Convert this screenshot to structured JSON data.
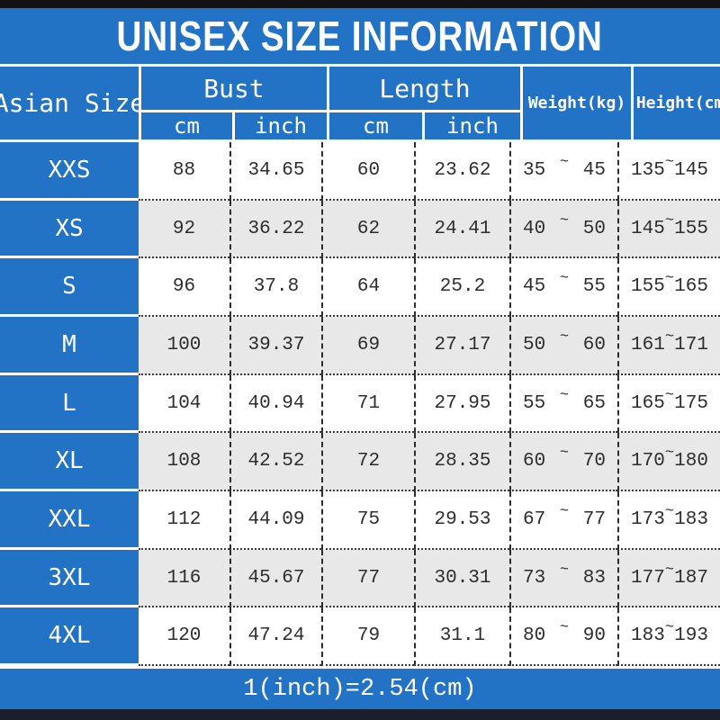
{
  "title": "UNISEX SIZE INFORMATION",
  "footer_note": "1(inch)=2.54(cm)",
  "symbols": {
    "tilde": "~"
  },
  "colors": {
    "background_blue": "#2273c5",
    "row_alt_gray": "#e8e8e8",
    "row_white": "#ffffff",
    "top_bar_black": "#121212",
    "bottom_bar_dark": "#1b1f2b",
    "text_dark": "#2d2d2d",
    "text_white": "#ffffff"
  },
  "header": {
    "asian_size": "Asian Size",
    "bust": "Bust",
    "length": "Length",
    "weight": "Weight(kg)",
    "height": "Height(cm)",
    "bust_cm": "cm",
    "bust_inch": "inch",
    "length_cm": "cm",
    "length_inch": "inch"
  },
  "table": {
    "rows": [
      {
        "size": "XXS",
        "bust_cm": "88",
        "bust_inch": "34.65",
        "length_cm": "60",
        "length_inch": "23.62",
        "weight_min": "35",
        "weight_max": "45",
        "height_min": "135",
        "height_max": "145"
      },
      {
        "size": "XS",
        "bust_cm": "92",
        "bust_inch": "36.22",
        "length_cm": "62",
        "length_inch": "24.41",
        "weight_min": "40",
        "weight_max": "50",
        "height_min": "145",
        "height_max": "155"
      },
      {
        "size": "S",
        "bust_cm": "96",
        "bust_inch": "37.8",
        "length_cm": "64",
        "length_inch": "25.2",
        "weight_min": "45",
        "weight_max": "55",
        "height_min": "155",
        "height_max": "165"
      },
      {
        "size": "M",
        "bust_cm": "100",
        "bust_inch": "39.37",
        "length_cm": "69",
        "length_inch": "27.17",
        "weight_min": "50",
        "weight_max": "60",
        "height_min": "161",
        "height_max": "171"
      },
      {
        "size": "L",
        "bust_cm": "104",
        "bust_inch": "40.94",
        "length_cm": "71",
        "length_inch": "27.95",
        "weight_min": "55",
        "weight_max": "65",
        "height_min": "165",
        "height_max": "175"
      },
      {
        "size": "XL",
        "bust_cm": "108",
        "bust_inch": "42.52",
        "length_cm": "72",
        "length_inch": "28.35",
        "weight_min": "60",
        "weight_max": "70",
        "height_min": "170",
        "height_max": "180"
      },
      {
        "size": "XXL",
        "bust_cm": "112",
        "bust_inch": "44.09",
        "length_cm": "75",
        "length_inch": "29.53",
        "weight_min": "67",
        "weight_max": "77",
        "height_min": "173",
        "height_max": "183"
      },
      {
        "size": "3XL",
        "bust_cm": "116",
        "bust_inch": "45.67",
        "length_cm": "77",
        "length_inch": "30.31",
        "weight_min": "73",
        "weight_max": "83",
        "height_min": "177",
        "height_max": "187"
      },
      {
        "size": "4XL",
        "bust_cm": "120",
        "bust_inch": "47.24",
        "length_cm": "79",
        "length_inch": "31.1",
        "weight_min": "80",
        "weight_max": "90",
        "height_min": "183",
        "height_max": "193"
      }
    ]
  },
  "chart_data": {
    "type": "table",
    "title": "UNISEX SIZE INFORMATION",
    "columns": [
      "Asian Size",
      "Bust cm",
      "Bust inch",
      "Length cm",
      "Length inch",
      "Weight(kg)",
      "Height(cm)"
    ],
    "rows": [
      [
        "XXS",
        88,
        34.65,
        60,
        23.62,
        "35~45",
        "135~145"
      ],
      [
        "XS",
        92,
        36.22,
        62,
        24.41,
        "40~50",
        "145~155"
      ],
      [
        "S",
        96,
        37.8,
        64,
        25.2,
        "45~55",
        "155~165"
      ],
      [
        "M",
        100,
        39.37,
        69,
        27.17,
        "50~60",
        "161~171"
      ],
      [
        "L",
        104,
        40.94,
        71,
        27.95,
        "55~65",
        "165~175"
      ],
      [
        "XL",
        108,
        42.52,
        72,
        28.35,
        "60~70",
        "170~180"
      ],
      [
        "XXL",
        112,
        44.09,
        75,
        29.53,
        "67~77",
        "173~183"
      ],
      [
        "3XL",
        116,
        45.67,
        77,
        30.31,
        "73~83",
        "177~187"
      ],
      [
        "4XL",
        120,
        47.24,
        79,
        31.1,
        "80~90",
        "183~193"
      ]
    ],
    "note": "1(inch)=2.54(cm)"
  }
}
